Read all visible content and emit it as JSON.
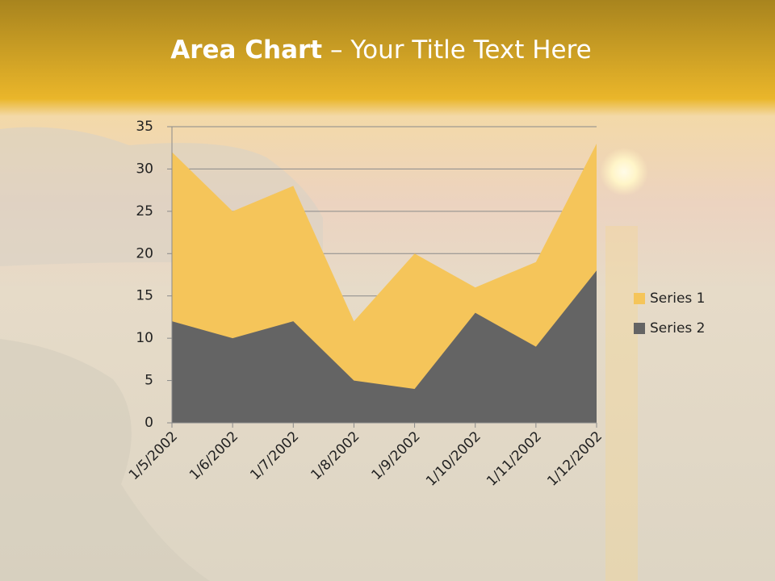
{
  "chart_data": {
    "type": "area",
    "title": [
      "Area Chart",
      " – Your Title Text Here"
    ],
    "categories": [
      "1/5/2002",
      "1/6/2002",
      "1/7/2002",
      "1/8/2002",
      "1/9/2002",
      "1/10/2002",
      "1/11/2002",
      "1/12/2002"
    ],
    "series": [
      {
        "name": "Series 1",
        "color": "#f5c55a",
        "values": [
          32,
          25,
          28,
          12,
          20,
          16,
          19,
          33
        ]
      },
      {
        "name": "Series 2",
        "color": "#646464",
        "values": [
          12,
          10,
          12,
          5,
          4,
          13,
          9,
          18
        ]
      }
    ],
    "ylim": [
      0,
      35
    ],
    "yticks": [
      0,
      5,
      10,
      15,
      20,
      25,
      30,
      35
    ],
    "grid": true,
    "legend": "right"
  }
}
